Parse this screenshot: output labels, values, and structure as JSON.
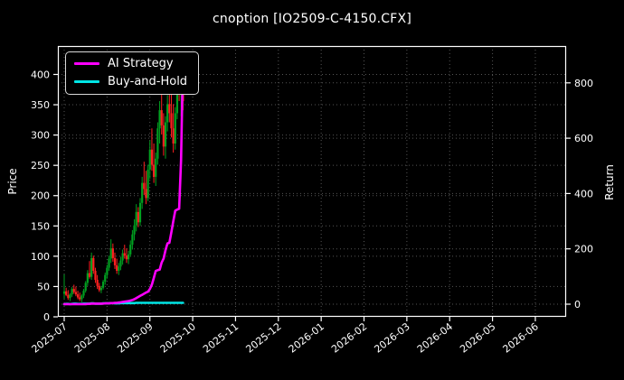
{
  "window": {
    "title": "cnoption [IO2509-C-4150.CFX]"
  },
  "colors": {
    "background": "#000000",
    "text": "#ffffff",
    "spine": "#ffffff",
    "grid": "#555555",
    "candle_up": "#00a020",
    "candle_down": "#ff2020",
    "ai_strategy": "#ff00ff",
    "buy_and_hold": "#00e5e5"
  },
  "legend": {
    "position": "top-left",
    "items": [
      {
        "label": "AI Strategy",
        "color": "#ff00ff"
      },
      {
        "label": "Buy-and-Hold",
        "color": "#00e5e5"
      }
    ]
  },
  "chart_data": {
    "type": "candlestick+line",
    "title": "cnoption [IO2509-C-4150.CFX]",
    "grid": true,
    "left_axis": {
      "label": "Price",
      "ticks": [
        0,
        50,
        100,
        150,
        200,
        250,
        300,
        350,
        400
      ],
      "range": [
        0,
        447
      ]
    },
    "right_axis": {
      "label": "Return",
      "ticks": [
        0,
        200,
        400,
        600,
        800
      ],
      "range": [
        -46,
        933
      ]
    },
    "x_axis": {
      "tick_labels": [
        "2025-07",
        "2025-08",
        "2025-09",
        "2025-10",
        "2025-11",
        "2025-12",
        "2026-01",
        "2026-02",
        "2026-03",
        "2026-04",
        "2026-05",
        "2026-06"
      ],
      "label_rotation_deg": -38
    },
    "candle_format": [
      "date",
      "open",
      "high",
      "low",
      "close"
    ],
    "candles": [
      [
        "2025-07-01",
        38,
        70,
        30,
        42
      ],
      [
        "2025-07-02",
        42,
        48,
        34,
        36
      ],
      [
        "2025-07-03",
        36,
        44,
        28,
        31
      ],
      [
        "2025-07-04",
        31,
        39,
        26,
        37
      ],
      [
        "2025-07-07",
        37,
        49,
        33,
        46
      ],
      [
        "2025-07-08",
        46,
        53,
        38,
        41
      ],
      [
        "2025-07-09",
        41,
        50,
        34,
        37
      ],
      [
        "2025-07-10",
        37,
        43,
        29,
        32
      ],
      [
        "2025-07-11",
        32,
        40,
        26,
        29
      ],
      [
        "2025-07-14",
        29,
        37,
        24,
        35
      ],
      [
        "2025-07-15",
        35,
        46,
        31,
        43
      ],
      [
        "2025-07-16",
        43,
        59,
        40,
        56
      ],
      [
        "2025-07-17",
        56,
        77,
        51,
        72
      ],
      [
        "2025-07-18",
        72,
        92,
        63,
        66
      ],
      [
        "2025-07-21",
        66,
        106,
        61,
        97
      ],
      [
        "2025-07-22",
        97,
        101,
        71,
        76
      ],
      [
        "2025-07-23",
        76,
        81,
        56,
        61
      ],
      [
        "2025-07-24",
        61,
        69,
        46,
        51
      ],
      [
        "2025-07-25",
        51,
        56,
        41,
        44
      ],
      [
        "2025-07-28",
        44,
        51,
        39,
        48
      ],
      [
        "2025-07-29",
        48,
        61,
        45,
        58
      ],
      [
        "2025-07-30",
        58,
        73,
        53,
        69
      ],
      [
        "2025-07-31",
        69,
        86,
        63,
        81
      ],
      [
        "2025-08-01",
        81,
        101,
        76,
        96
      ],
      [
        "2025-08-04",
        96,
        128,
        89,
        113
      ],
      [
        "2025-08-05",
        113,
        121,
        91,
        97
      ],
      [
        "2025-08-06",
        97,
        106,
        79,
        85
      ],
      [
        "2025-08-07",
        85,
        96,
        71,
        76
      ],
      [
        "2025-08-08",
        76,
        89,
        69,
        83
      ],
      [
        "2025-08-11",
        83,
        99,
        77,
        93
      ],
      [
        "2025-08-12",
        93,
        111,
        86,
        105
      ],
      [
        "2025-08-13",
        105,
        119,
        96,
        101
      ],
      [
        "2025-08-14",
        101,
        113,
        89,
        95
      ],
      [
        "2025-08-15",
        95,
        109,
        87,
        103
      ],
      [
        "2025-08-18",
        103,
        126,
        99,
        119
      ],
      [
        "2025-08-19",
        119,
        143,
        111,
        136
      ],
      [
        "2025-08-20",
        136,
        161,
        126,
        151
      ],
      [
        "2025-08-21",
        151,
        186,
        141,
        173
      ],
      [
        "2025-08-22",
        173,
        181,
        148,
        156
      ],
      [
        "2025-08-25",
        156,
        196,
        150,
        188
      ],
      [
        "2025-08-26",
        188,
        231,
        178,
        221
      ],
      [
        "2025-08-27",
        221,
        256,
        201,
        211
      ],
      [
        "2025-08-28",
        211,
        241,
        186,
        196
      ],
      [
        "2025-08-29",
        196,
        251,
        191,
        243
      ],
      [
        "2025-09-01",
        243,
        291,
        228,
        276
      ],
      [
        "2025-09-02",
        276,
        311,
        241,
        251
      ],
      [
        "2025-09-03",
        251,
        286,
        221,
        231
      ],
      [
        "2025-09-04",
        231,
        271,
        216,
        261
      ],
      [
        "2025-09-05",
        261,
        321,
        251,
        311
      ],
      [
        "2025-09-08",
        311,
        356,
        286,
        341
      ],
      [
        "2025-09-09",
        341,
        371,
        301,
        316
      ],
      [
        "2025-09-10",
        316,
        336,
        266,
        281
      ],
      [
        "2025-09-11",
        281,
        331,
        261,
        321
      ],
      [
        "2025-09-12",
        321,
        366,
        306,
        351
      ],
      [
        "2025-09-15",
        351,
        391,
        321,
        336
      ],
      [
        "2025-09-16",
        336,
        376,
        296,
        311
      ],
      [
        "2025-09-17",
        311,
        351,
        271,
        286
      ],
      [
        "2025-09-18",
        286,
        346,
        276,
        336
      ],
      [
        "2025-09-19",
        336,
        396,
        326,
        386
      ],
      [
        "2025-09-22",
        386,
        431,
        356,
        371
      ],
      [
        "2025-09-23",
        371,
        411,
        331,
        391
      ],
      [
        "2025-09-24",
        391,
        426,
        341,
        356
      ]
    ],
    "series": [
      {
        "name": "AI Strategy",
        "axis": "right",
        "color": "#ff00ff",
        "values": [
          0,
          0,
          0,
          0,
          0,
          0,
          0,
          0,
          0,
          0,
          0,
          0,
          1,
          1,
          2,
          2,
          2,
          2,
          2,
          2,
          2,
          3,
          3,
          3,
          4,
          4,
          5,
          5,
          6,
          7,
          8,
          9,
          10,
          11,
          13,
          15,
          18,
          22,
          26,
          30,
          34,
          38,
          42,
          45,
          55,
          70,
          95,
          120,
          123,
          125,
          150,
          165,
          195,
          220,
          222,
          260,
          300,
          338,
          342,
          345,
          520,
          900
        ]
      },
      {
        "name": "Buy-and-Hold",
        "axis": "right",
        "color": "#00e5e5",
        "values": [
          0,
          1,
          1,
          0,
          1,
          2,
          2,
          1,
          1,
          1,
          2,
          2,
          2,
          2,
          3,
          3,
          2,
          2,
          2,
          2,
          3,
          3,
          3,
          3,
          4,
          4,
          3,
          3,
          3,
          4,
          4,
          4,
          4,
          4,
          4,
          4,
          4,
          5,
          5,
          5,
          5,
          5,
          5,
          5,
          5,
          5,
          5,
          5,
          5,
          5,
          5,
          5,
          5,
          5,
          5,
          5,
          5,
          5,
          5,
          5,
          5,
          5
        ]
      }
    ]
  }
}
